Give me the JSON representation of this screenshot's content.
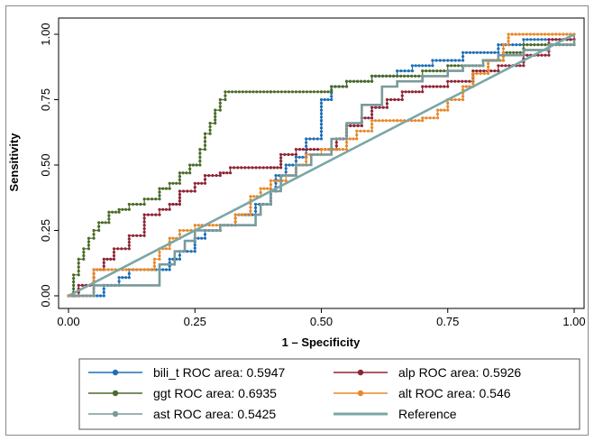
{
  "chart_data": {
    "type": "line",
    "xlabel": "1 – Specificity",
    "ylabel": "Sensitivity",
    "xlim": [
      0,
      1
    ],
    "ylim": [
      0,
      1
    ],
    "x_ticks": [
      "0.00",
      "0.25",
      "0.50",
      "0.75",
      "1.00"
    ],
    "y_ticks": [
      "0.00",
      "0.25",
      "0.50",
      "0.75",
      "1.00"
    ],
    "grid": false,
    "legend_position": "bottom",
    "series": [
      {
        "name": "bili_t ROC area: 0.5947",
        "color": "#1f6fb6",
        "markers": true,
        "points": [
          [
            0,
            0
          ],
          [
            0.05,
            0
          ],
          [
            0.07,
            0.04
          ],
          [
            0.1,
            0.07
          ],
          [
            0.12,
            0.1
          ],
          [
            0.18,
            0.1
          ],
          [
            0.2,
            0.14
          ],
          [
            0.22,
            0.17
          ],
          [
            0.25,
            0.22
          ],
          [
            0.27,
            0.25
          ],
          [
            0.3,
            0.27
          ],
          [
            0.33,
            0.31
          ],
          [
            0.37,
            0.35
          ],
          [
            0.4,
            0.4
          ],
          [
            0.41,
            0.46
          ],
          [
            0.43,
            0.5
          ],
          [
            0.45,
            0.53
          ],
          [
            0.47,
            0.6
          ],
          [
            0.5,
            0.67
          ],
          [
            0.5,
            0.75
          ],
          [
            0.52,
            0.8
          ],
          [
            0.55,
            0.82
          ],
          [
            0.6,
            0.84
          ],
          [
            0.65,
            0.86
          ],
          [
            0.68,
            0.88
          ],
          [
            0.72,
            0.9
          ],
          [
            0.78,
            0.93
          ],
          [
            0.85,
            0.96
          ],
          [
            0.9,
            0.98
          ],
          [
            1.0,
            0.98
          ]
        ]
      },
      {
        "name": "alp ROC area: 0.5926",
        "color": "#8e2535",
        "markers": true,
        "points": [
          [
            0,
            0
          ],
          [
            0.02,
            0.04
          ],
          [
            0.05,
            0.1
          ],
          [
            0.07,
            0.14
          ],
          [
            0.09,
            0.18
          ],
          [
            0.12,
            0.23
          ],
          [
            0.15,
            0.31
          ],
          [
            0.18,
            0.33
          ],
          [
            0.2,
            0.35
          ],
          [
            0.22,
            0.4
          ],
          [
            0.25,
            0.43
          ],
          [
            0.27,
            0.46
          ],
          [
            0.3,
            0.47
          ],
          [
            0.32,
            0.49
          ],
          [
            0.4,
            0.49
          ],
          [
            0.42,
            0.54
          ],
          [
            0.45,
            0.56
          ],
          [
            0.5,
            0.56
          ],
          [
            0.53,
            0.6
          ],
          [
            0.55,
            0.65
          ],
          [
            0.58,
            0.68
          ],
          [
            0.6,
            0.72
          ],
          [
            0.63,
            0.75
          ],
          [
            0.66,
            0.78
          ],
          [
            0.7,
            0.8
          ],
          [
            0.75,
            0.82
          ],
          [
            0.8,
            0.86
          ],
          [
            0.85,
            0.88
          ],
          [
            0.9,
            0.92
          ],
          [
            0.95,
            0.98
          ],
          [
            1.0,
            1.0
          ]
        ]
      },
      {
        "name": "ggt ROC area: 0.6935",
        "color": "#4b6b28",
        "markers": true,
        "points": [
          [
            0,
            0
          ],
          [
            0.01,
            0.08
          ],
          [
            0.02,
            0.14
          ],
          [
            0.03,
            0.18
          ],
          [
            0.04,
            0.22
          ],
          [
            0.05,
            0.25
          ],
          [
            0.06,
            0.28
          ],
          [
            0.08,
            0.32
          ],
          [
            0.1,
            0.33
          ],
          [
            0.12,
            0.35
          ],
          [
            0.15,
            0.37
          ],
          [
            0.18,
            0.41
          ],
          [
            0.2,
            0.43
          ],
          [
            0.22,
            0.47
          ],
          [
            0.24,
            0.5
          ],
          [
            0.26,
            0.56
          ],
          [
            0.27,
            0.62
          ],
          [
            0.28,
            0.66
          ],
          [
            0.29,
            0.71
          ],
          [
            0.3,
            0.75
          ],
          [
            0.31,
            0.78
          ],
          [
            0.4,
            0.78
          ],
          [
            0.5,
            0.78
          ],
          [
            0.52,
            0.8
          ],
          [
            0.55,
            0.82
          ],
          [
            0.6,
            0.84
          ],
          [
            0.7,
            0.86
          ],
          [
            0.75,
            0.88
          ],
          [
            0.82,
            0.9
          ],
          [
            0.86,
            0.93
          ],
          [
            0.9,
            0.96
          ],
          [
            1.0,
            0.98
          ]
        ]
      },
      {
        "name": "alt ROC area: 0.546",
        "color": "#e8892a",
        "markers": true,
        "points": [
          [
            0,
            0
          ],
          [
            0.05,
            0
          ],
          [
            0.05,
            0.1
          ],
          [
            0.15,
            0.1
          ],
          [
            0.17,
            0.14
          ],
          [
            0.18,
            0.18
          ],
          [
            0.2,
            0.22
          ],
          [
            0.22,
            0.25
          ],
          [
            0.25,
            0.27
          ],
          [
            0.3,
            0.27
          ],
          [
            0.33,
            0.31
          ],
          [
            0.36,
            0.38
          ],
          [
            0.38,
            0.41
          ],
          [
            0.4,
            0.44
          ],
          [
            0.43,
            0.46
          ],
          [
            0.45,
            0.5
          ],
          [
            0.47,
            0.54
          ],
          [
            0.5,
            0.56
          ],
          [
            0.55,
            0.6
          ],
          [
            0.57,
            0.63
          ],
          [
            0.6,
            0.67
          ],
          [
            0.65,
            0.67
          ],
          [
            0.7,
            0.68
          ],
          [
            0.73,
            0.71
          ],
          [
            0.75,
            0.75
          ],
          [
            0.78,
            0.8
          ],
          [
            0.8,
            0.85
          ],
          [
            0.83,
            0.9
          ],
          [
            0.86,
            0.96
          ],
          [
            0.87,
            1.0
          ],
          [
            1.0,
            1.0
          ]
        ]
      },
      {
        "name": "ast ROC area: 0.5425",
        "color": "#7a9a9a",
        "markers": false,
        "points": [
          [
            0,
            0
          ],
          [
            0.05,
            0
          ],
          [
            0.05,
            0.04
          ],
          [
            0.18,
            0.04
          ],
          [
            0.18,
            0.12
          ],
          [
            0.21,
            0.17
          ],
          [
            0.23,
            0.21
          ],
          [
            0.25,
            0.25
          ],
          [
            0.28,
            0.25
          ],
          [
            0.3,
            0.27
          ],
          [
            0.35,
            0.27
          ],
          [
            0.37,
            0.31
          ],
          [
            0.38,
            0.35
          ],
          [
            0.4,
            0.4
          ],
          [
            0.42,
            0.46
          ],
          [
            0.45,
            0.5
          ],
          [
            0.48,
            0.54
          ],
          [
            0.52,
            0.6
          ],
          [
            0.55,
            0.66
          ],
          [
            0.58,
            0.73
          ],
          [
            0.62,
            0.8
          ],
          [
            0.65,
            0.82
          ],
          [
            0.7,
            0.84
          ],
          [
            0.75,
            0.86
          ],
          [
            0.78,
            0.88
          ],
          [
            0.82,
            0.9
          ],
          [
            0.85,
            0.92
          ],
          [
            0.9,
            0.94
          ],
          [
            0.95,
            0.96
          ],
          [
            1.0,
            0.98
          ]
        ]
      },
      {
        "name": "Reference",
        "color": "#7aa6a6",
        "markers": false,
        "reference": true,
        "points": [
          [
            0,
            0
          ],
          [
            1,
            1
          ]
        ]
      }
    ]
  },
  "legend": {
    "entries": [
      {
        "label": "bili_t ROC area: 0.5947",
        "color": "#1f6fb6",
        "marker": true
      },
      {
        "label": "alp ROC area: 0.5926",
        "color": "#8e2535",
        "marker": true
      },
      {
        "label": "ggt ROC area: 0.6935",
        "color": "#4b6b28",
        "marker": true
      },
      {
        "label": "alt ROC area: 0.546",
        "color": "#e8892a",
        "marker": true
      },
      {
        "label": "ast ROC area: 0.5425",
        "color": "#7a9a9a",
        "marker": true
      },
      {
        "label": "Reference",
        "color": "#7aa6a6",
        "marker": false
      }
    ]
  }
}
